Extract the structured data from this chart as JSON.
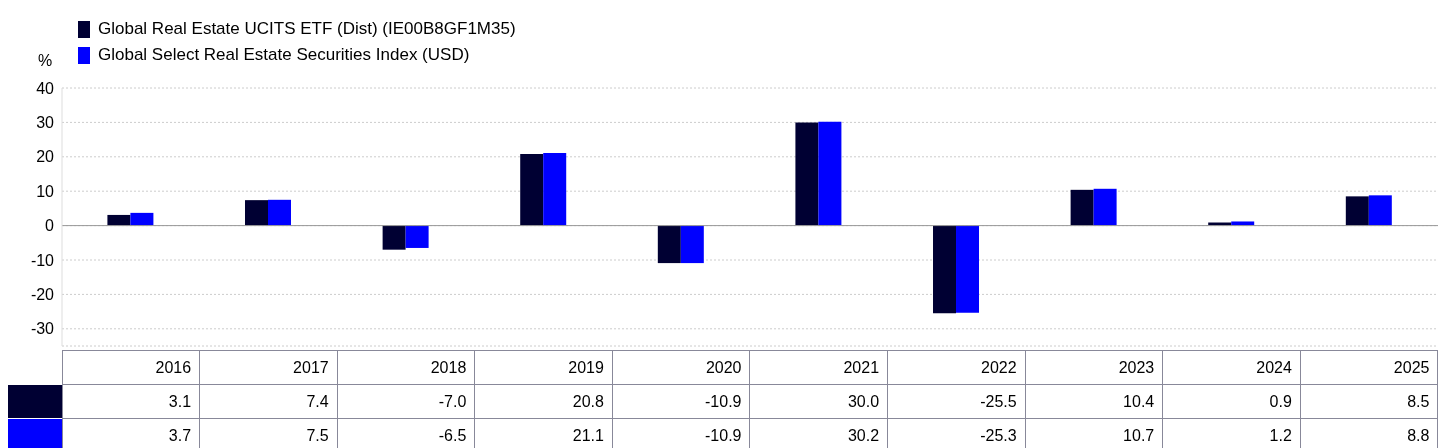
{
  "chart_data": {
    "type": "bar",
    "ylabel": "%",
    "categories": [
      "2016",
      "2017",
      "2018",
      "2019",
      "2020",
      "2021",
      "2022",
      "2023",
      "2024",
      "2025"
    ],
    "series": [
      {
        "name": "Global Real Estate UCITS ETF (Dist) (IE00B8GF1M35)",
        "color": "#000033",
        "values": [
          3.1,
          7.4,
          -7.0,
          20.8,
          -10.9,
          30.0,
          -25.5,
          10.4,
          0.9,
          8.5
        ],
        "value_labels": [
          "3.1",
          "7.4",
          "-7.0",
          "20.8",
          "-10.9",
          "30.0",
          "-25.5",
          "10.4",
          "0.9",
          "8.5"
        ]
      },
      {
        "name": "Global Select Real Estate Securities Index (USD)",
        "color": "#0000ff",
        "values": [
          3.7,
          7.5,
          -6.5,
          21.1,
          -10.9,
          30.2,
          -25.3,
          10.7,
          1.2,
          8.8
        ],
        "value_labels": [
          "3.7",
          "7.5",
          "-6.5",
          "21.1",
          "-10.9",
          "30.2",
          "-25.3",
          "10.7",
          "1.2",
          "8.8"
        ]
      }
    ],
    "ylim": [
      -35,
      40
    ],
    "yticks": [
      -30,
      -20,
      -10,
      0,
      10,
      20,
      30,
      40
    ],
    "grid": "y",
    "legend": "top left"
  }
}
